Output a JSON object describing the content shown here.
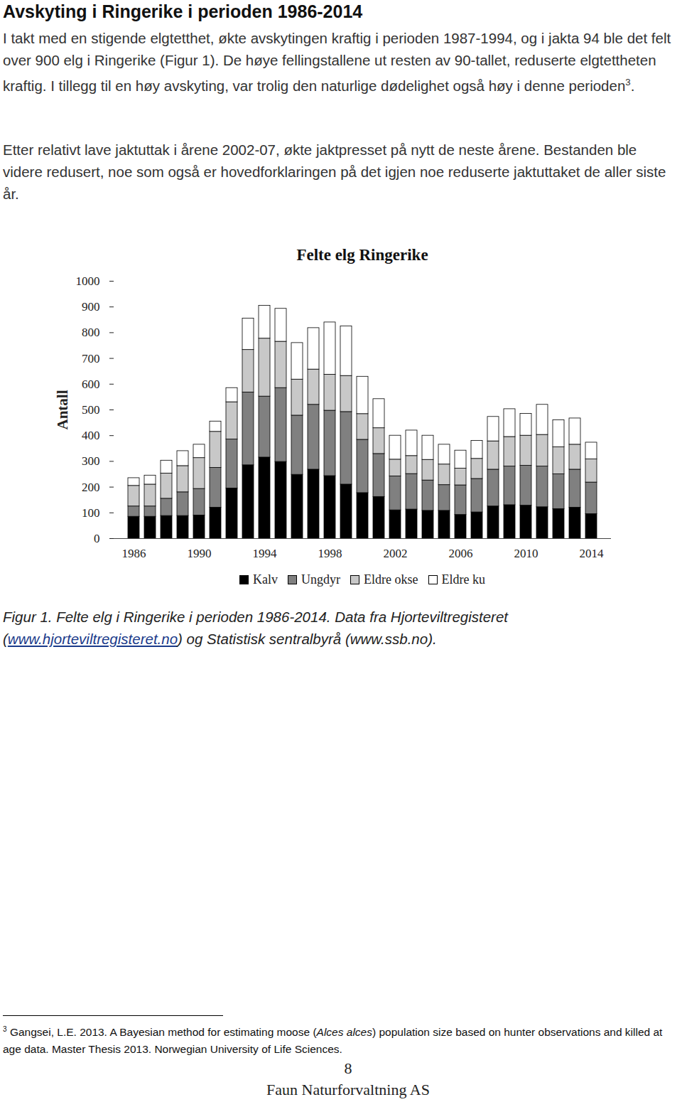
{
  "document": {
    "heading": "Avskyting i Ringerike i perioden 1986-2014",
    "paragraphs": [
      [
        {
          "text": "I takt med en stigende elgtetthet, økte avskytingen kraftig i perioden 1987-1994, og i jakta 94 ble det felt over 900 elg i Ringerike (Figur 1). De høye fellingstallene ut resten av 90-tallet, reduserte elgtettheten kraftig. I tillegg til en høy avskyting, var trolig den naturlige dødelighet også høy i denne perioden"
        },
        {
          "text": "3",
          "sup": true
        },
        {
          "text": "."
        }
      ],
      [
        {
          "text": "Etter relativt lave jaktuttak i årene 2002-07, økte jaktpresset på nytt de neste årene. Bestanden ble videre redusert, noe som også er hovedforklaringen på det igjen noe reduserte jaktuttaket de aller siste år."
        }
      ]
    ],
    "caption": [
      {
        "text": "Figur 1. Felte elg i Ringerike i perioden 1986-2014. Data fra Hjorteviltregisteret ("
      },
      {
        "text": "www.hjorteviltregisteret.no",
        "link": true
      },
      {
        "text": ") og Statistisk sentralbyrå (www.ssb.no)."
      }
    ],
    "footnote": [
      {
        "text": "3",
        "sup": true
      },
      {
        "text": " Gangsei, L.E. 2013. A Bayesian method for estimating moose ("
      },
      {
        "text": "Alces alces",
        "italic": true
      },
      {
        "text": ") population size based on hunter observations and killed at age data. Master Thesis 2013. Norwegian University of Life Sciences."
      }
    ],
    "page_number": "8",
    "footer": "Faun Naturforvaltning AS"
  },
  "chart_data": {
    "type": "bar",
    "title": "Felte elg Ringerike",
    "y_label": "Antall",
    "stacked": true,
    "grid": false,
    "legend": "bottom",
    "categories": [
      1986,
      1987,
      1988,
      1989,
      1990,
      1991,
      1992,
      1993,
      1994,
      1995,
      1996,
      1997,
      1998,
      1999,
      2000,
      2001,
      2002,
      2003,
      2004,
      2005,
      2006,
      2007,
      2008,
      2009,
      2010,
      2011,
      2012,
      2013,
      2014
    ],
    "xticks": [
      1986,
      1990,
      1994,
      1998,
      2002,
      2006,
      2010,
      2014
    ],
    "ylim": [
      0,
      1000
    ],
    "yticks": [
      0,
      100,
      200,
      300,
      400,
      500,
      600,
      700,
      800,
      900,
      1000
    ],
    "series": [
      {
        "name": "Kalv",
        "color": "#000000",
        "values": [
          85,
          85,
          88,
          88,
          90,
          120,
          195,
          285,
          315,
          298,
          248,
          268,
          243,
          210,
          177,
          162,
          110,
          113,
          108,
          108,
          92,
          102,
          125,
          130,
          128,
          122,
          115,
          120,
          95
        ]
      },
      {
        "name": "Ungdyr",
        "color": "#808080",
        "values": [
          40,
          40,
          67,
          92,
          103,
          155,
          190,
          283,
          237,
          287,
          230,
          252,
          254,
          282,
          207,
          167,
          132,
          138,
          118,
          100,
          115,
          130,
          143,
          150,
          155,
          158,
          135,
          148,
          123
        ]
      },
      {
        "name": "Eldre okse",
        "color": "#c8c8c8",
        "values": [
          80,
          85,
          98,
          102,
          120,
          140,
          145,
          165,
          225,
          180,
          140,
          137,
          140,
          140,
          100,
          100,
          65,
          70,
          80,
          80,
          65,
          78,
          110,
          115,
          117,
          123,
          105,
          97,
          90
        ]
      },
      {
        "name": "Eldre ku",
        "color": "#ffffff",
        "values": [
          30,
          35,
          50,
          58,
          52,
          40,
          55,
          122,
          128,
          128,
          142,
          161,
          203,
          193,
          145,
          113,
          93,
          99,
          94,
          77,
          70,
          70,
          95,
          108,
          85,
          117,
          105,
          102,
          65
        ]
      }
    ]
  }
}
